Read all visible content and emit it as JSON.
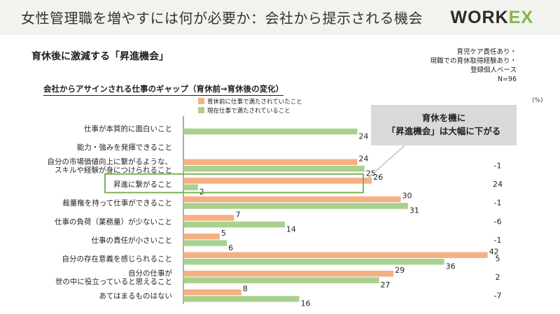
{
  "header": {
    "title": "女性管理職を増やすには何が必要か：会社から提示される機会",
    "logo": "WORK",
    "logo_mark": "EX"
  },
  "subtitle": "育休後に激減する「昇進機会」",
  "sample": {
    "line1": "育児ケア責任あり・",
    "line2": "現職での育休取得経験あり・",
    "line3": "登録個人ベース",
    "line4": "N=96"
  },
  "chart_title": "会社からアサインされる仕事のギャップ（育休前→育休後の変化）",
  "unit": "(%)",
  "callout": {
    "line1": "育休を機に",
    "line2": "「昇進機会」は大幅に下がる"
  },
  "colors": {
    "before": "#f4b183",
    "after": "#a9d18e",
    "highlight": "#70ad47",
    "callout_bg": "#d9d9d9"
  },
  "chart_data": {
    "type": "bar",
    "orientation": "horizontal",
    "categories": [
      [
        "仕事が本質的に面白いこと"
      ],
      [
        "能力・強みを発揮できること"
      ],
      [
        "自分の市場価値向上に繋がるような、",
        "スキルや経験が身につけられること"
      ],
      [
        "昇進に繋がること"
      ],
      [
        "裁量権を持って仕事ができること"
      ],
      [
        "仕事の負荷（業務量）が少ないこと"
      ],
      [
        "仕事の責任が小さいこと"
      ],
      [
        "自分の存在意義を感じられること"
      ],
      [
        "自分の仕事が",
        "世の中に役立っていると思えること"
      ],
      [
        "あてはまるものはない"
      ]
    ],
    "series": [
      {
        "name": "育休前に仕事で満たされていたこと",
        "values": [
          null,
          null,
          24,
          26,
          30,
          7,
          5,
          42,
          29,
          8
        ]
      },
      {
        "name": "現在仕事で満たされていること",
        "values": [
          24,
          null,
          25,
          2,
          31,
          14,
          6,
          36,
          27,
          16
        ]
      }
    ],
    "differences": [
      "",
      "",
      "-1",
      "24",
      "-1",
      "-6",
      "-1",
      "5",
      "2",
      "-7"
    ],
    "highlight_index": 3,
    "xlim": [
      0,
      60
    ]
  }
}
